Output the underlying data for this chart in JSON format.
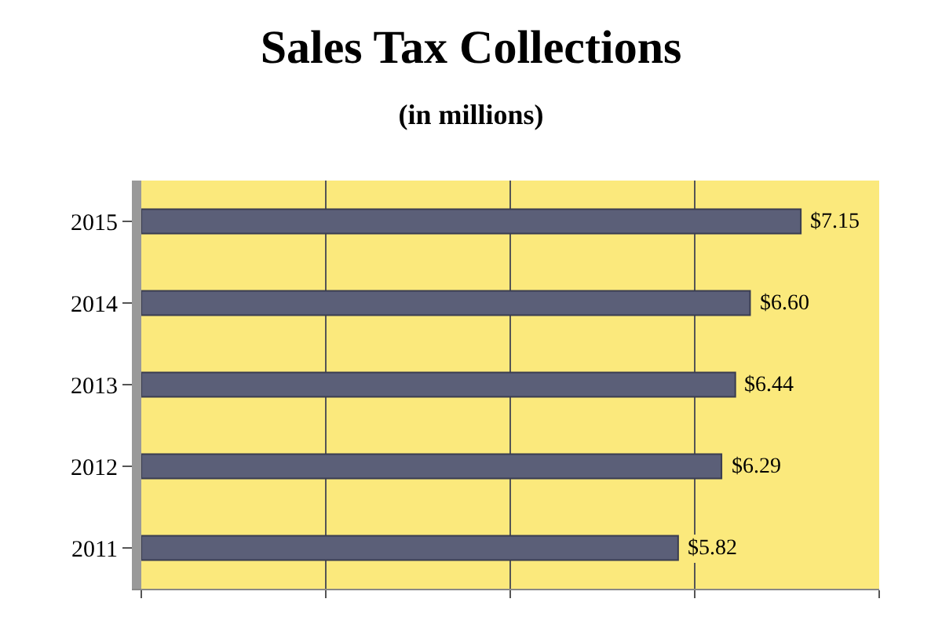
{
  "chart_data": {
    "type": "bar",
    "orientation": "horizontal",
    "title": "Sales Tax Collections",
    "subtitle": "(in millions)",
    "categories": [
      "2015",
      "2014",
      "2013",
      "2012",
      "2011"
    ],
    "values": [
      7.15,
      6.6,
      6.44,
      6.29,
      5.82
    ],
    "value_labels": [
      "$7.15",
      "$6.60",
      "$6.44",
      "$6.29",
      "$5.82"
    ],
    "color": "#5b5f78",
    "xlim": [
      0,
      8
    ],
    "xticks": [
      {
        "value": 0,
        "label": null
      },
      {
        "value": 2,
        "label": null
      },
      {
        "value": 4,
        "label": null
      },
      {
        "value": 6,
        "label": null
      },
      {
        "value": 8,
        "label": null
      }
    ],
    "grid": "x",
    "tick_labels": "y"
  }
}
